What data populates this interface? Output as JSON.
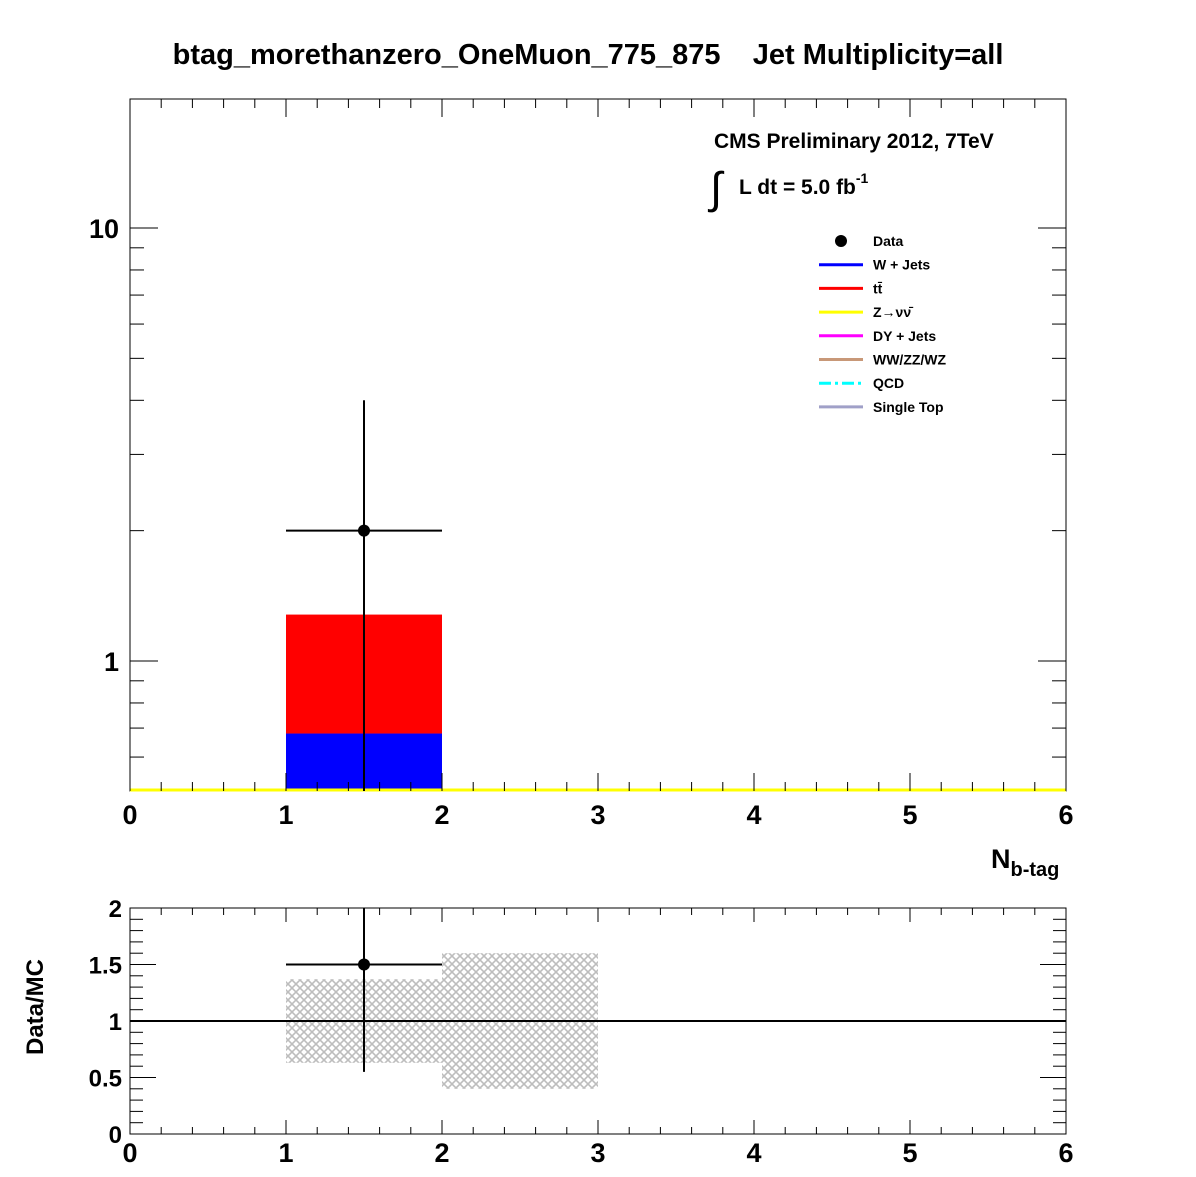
{
  "title": "btag_morethanzero_OneMuon_775_875    Jet Multiplicity=all",
  "annotation": {
    "line1": "CMS Preliminary 2012, 7TeV",
    "line2": "L dt = 5.0 fb",
    "line2_sup": "-1",
    "integral_glyph": "∫"
  },
  "colors": {
    "data": "#000000",
    "wjets": "#0000ff",
    "ttbar": "#ff0000",
    "znunu": "#ffff00",
    "dy": "#ff00ff",
    "diboson": "#c89878",
    "qcd": "#00ffff",
    "singletop": "#a0a0c8",
    "uncertainty": "#bdbdbd"
  },
  "chart_data": [
    {
      "type": "bar",
      "stacked": true,
      "log_y": true,
      "title": "btag_morethanzero_OneMuon_775_875    Jet Multiplicity=all",
      "xlabel": "N",
      "xlabel_sub": "b-tag",
      "ylabel": "",
      "xlim": [
        0,
        6
      ],
      "ylim": [
        0.5,
        20
      ],
      "x_ticks": [
        "0",
        "1",
        "2",
        "3",
        "4",
        "5",
        "6"
      ],
      "y_ticks": [
        "1",
        "10"
      ],
      "y_tick_values": [
        1,
        10
      ],
      "bins": [
        [
          0,
          1
        ],
        [
          1,
          2
        ],
        [
          2,
          3
        ],
        [
          3,
          4
        ],
        [
          4,
          5
        ],
        [
          5,
          6
        ]
      ],
      "series": [
        {
          "name": "W + Jets",
          "values": [
            0,
            0.68,
            0,
            0,
            0,
            0
          ]
        },
        {
          "name": "tt̄",
          "values": [
            0,
            0.6,
            0,
            0,
            0,
            0
          ]
        },
        {
          "name": "Z→νν̄",
          "values": [
            0,
            0,
            0,
            0,
            0,
            0
          ]
        },
        {
          "name": "DY + Jets",
          "values": [
            0,
            0,
            0,
            0,
            0,
            0
          ]
        },
        {
          "name": "WW/ZZ/WZ",
          "values": [
            0,
            0,
            0,
            0,
            0,
            0
          ]
        },
        {
          "name": "QCD",
          "values": [
            0,
            0,
            0,
            0,
            0,
            0
          ]
        },
        {
          "name": "Single Top",
          "values": [
            0,
            0,
            0,
            0,
            0,
            0
          ]
        }
      ],
      "data_points": [
        {
          "name": "Data",
          "x": 1.5,
          "x_err": 0.5,
          "y": 2,
          "y_low": 0.5,
          "y_high": 4.0
        }
      ],
      "legend": {
        "placement": "top-right",
        "entries": [
          {
            "label": "Data",
            "style": "marker"
          },
          {
            "label": "W + Jets",
            "style": "line"
          },
          {
            "label": "tt̄",
            "style": "line"
          },
          {
            "label": "Z→νν̄",
            "style": "line"
          },
          {
            "label": "DY + Jets",
            "style": "line"
          },
          {
            "label": "WW/ZZ/WZ",
            "style": "line"
          },
          {
            "label": "QCD",
            "style": "dashdot"
          },
          {
            "label": "Single Top",
            "style": "line"
          }
        ]
      }
    },
    {
      "type": "scatter",
      "ylabel": "Data/MC",
      "xlim": [
        0,
        6
      ],
      "ylim": [
        0,
        2
      ],
      "x_ticks": [
        "0",
        "1",
        "2",
        "3",
        "4",
        "5",
        "6"
      ],
      "y_ticks": [
        "0",
        "0.5",
        "1",
        "1.5",
        "2"
      ],
      "y_tick_values": [
        0,
        0.5,
        1,
        1.5,
        2
      ],
      "reference_line": 1,
      "points": [
        {
          "x": 1.5,
          "x_err": 0.5,
          "y": 1.5,
          "y_low": 0.55,
          "y_high": 2.0
        }
      ],
      "uncertainty_bands": [
        {
          "x0": 1,
          "x1": 2,
          "low": 0.63,
          "high": 1.37
        },
        {
          "x0": 2,
          "x1": 3,
          "low": 0.4,
          "high": 1.6
        }
      ]
    }
  ]
}
